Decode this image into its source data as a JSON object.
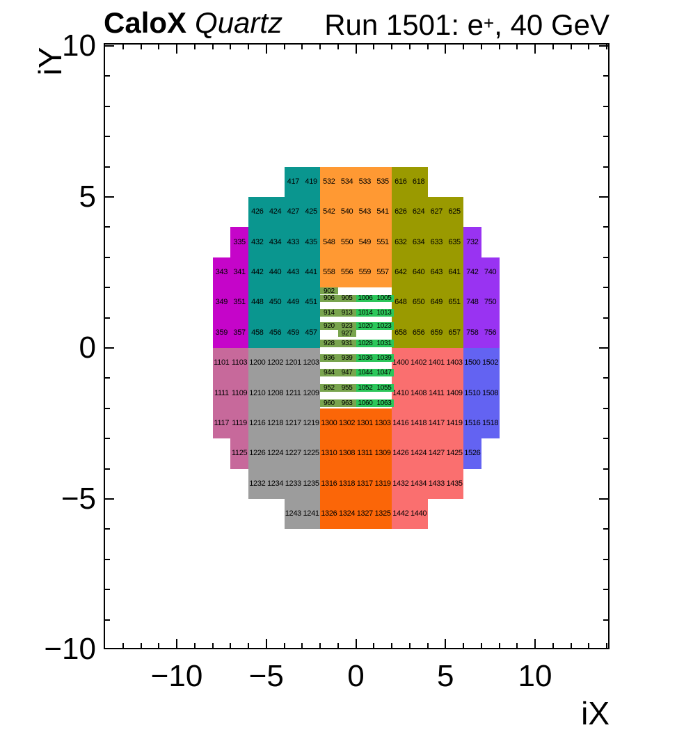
{
  "header": {
    "left_title_bold": "CaloX",
    "left_title_italic": "Quartz",
    "right_title_prefix": "Run 1501: e",
    "right_title_sup": "+",
    "right_title_suffix": ", 40 GeV"
  },
  "chart_data": {
    "type": "heatmap",
    "title": "CaloX Quartz — Run 1501: e+, 40 GeV",
    "xlabel": "iX",
    "ylabel": "iY",
    "xlim": [
      -14.1,
      14.15
    ],
    "ylim": [
      -10.05,
      10.1
    ],
    "grid": false,
    "x_major_ticks": [
      {
        "v": -10,
        "label": "−10"
      },
      {
        "v": -5,
        "label": "−5"
      },
      {
        "v": 0,
        "label": "0"
      },
      {
        "v": 5,
        "label": "5"
      },
      {
        "v": 10,
        "label": "10"
      }
    ],
    "y_major_ticks": [
      {
        "v": 10,
        "label": "10"
      },
      {
        "v": 5,
        "label": "5"
      },
      {
        "v": 0,
        "label": "0"
      },
      {
        "v": -5,
        "label": "−5"
      },
      {
        "v": -10,
        "label": "−10"
      }
    ],
    "x_minor_step": 1,
    "y_minor_step": 1,
    "frame_color": "#000000",
    "background_color": "#FFFFFF",
    "palette": {
      "teal": "#0A968F",
      "magenta": "#C505C9",
      "orange_light": "#FF9933",
      "olive": "#9A9A00",
      "violet": "#9933F2",
      "pink": "#C7699B",
      "gray": "#9C9C9C",
      "orange_dark": "#FB6608",
      "salmon": "#FA6F6F",
      "blue": "#6363F2",
      "green_dark": "#79A44E",
      "green_bright": "#2BC65A"
    },
    "blocks": [
      {
        "c": "magenta",
        "x0": -7,
        "x1": -6,
        "y0": 3,
        "y1": 4,
        "n": [
          335
        ]
      },
      {
        "c": "magenta",
        "x0": -8,
        "x1": -6,
        "y0": 2,
        "y1": 3,
        "n": [
          343,
          341
        ]
      },
      {
        "c": "magenta",
        "x0": -8,
        "x1": -6,
        "y0": 1,
        "y1": 2,
        "n": [
          349,
          351
        ]
      },
      {
        "c": "magenta",
        "x0": -8,
        "x1": -6,
        "y0": 0,
        "y1": 1,
        "n": [
          359,
          357
        ]
      },
      {
        "c": "teal",
        "x0": -4,
        "x1": -2,
        "y0": 5,
        "y1": 6,
        "n": [
          417,
          419
        ]
      },
      {
        "c": "teal",
        "x0": -6,
        "x1": -2,
        "y0": 4,
        "y1": 5,
        "n": [
          426,
          424,
          427,
          425
        ]
      },
      {
        "c": "teal",
        "x0": -6,
        "x1": -2,
        "y0": 3,
        "y1": 4,
        "n": [
          432,
          434,
          433,
          435
        ]
      },
      {
        "c": "teal",
        "x0": -6,
        "x1": -2,
        "y0": 2,
        "y1": 3,
        "n": [
          442,
          440,
          443,
          441
        ]
      },
      {
        "c": "teal",
        "x0": -6,
        "x1": -2,
        "y0": 1,
        "y1": 2,
        "n": [
          448,
          450,
          449,
          451
        ]
      },
      {
        "c": "teal",
        "x0": -6,
        "x1": -2,
        "y0": 0,
        "y1": 1,
        "n": [
          458,
          456,
          459,
          457
        ]
      },
      {
        "c": "orange_light",
        "x0": -2,
        "x1": 2,
        "y0": 5,
        "y1": 6,
        "n": [
          532,
          534,
          533,
          535
        ]
      },
      {
        "c": "orange_light",
        "x0": -2,
        "x1": 2,
        "y0": 4,
        "y1": 5,
        "n": [
          542,
          540,
          543,
          541
        ]
      },
      {
        "c": "orange_light",
        "x0": -2,
        "x1": 2,
        "y0": 3,
        "y1": 4,
        "n": [
          548,
          550,
          549,
          551
        ]
      },
      {
        "c": "orange_light",
        "x0": -2,
        "x1": 2,
        "y0": 2,
        "y1": 3,
        "n": [
          558,
          556,
          559,
          557
        ]
      },
      {
        "c": "olive",
        "x0": 2,
        "x1": 4,
        "y0": 5,
        "y1": 6,
        "n": [
          616,
          618
        ]
      },
      {
        "c": "olive",
        "x0": 2,
        "x1": 6,
        "y0": 4,
        "y1": 5,
        "n": [
          626,
          624,
          627,
          625
        ]
      },
      {
        "c": "olive",
        "x0": 2,
        "x1": 6,
        "y0": 3,
        "y1": 4,
        "n": [
          632,
          634,
          633,
          635
        ]
      },
      {
        "c": "olive",
        "x0": 2,
        "x1": 6,
        "y0": 2,
        "y1": 3,
        "n": [
          642,
          640,
          643,
          641
        ]
      },
      {
        "c": "olive",
        "x0": 2,
        "x1": 6,
        "y0": 1,
        "y1": 2,
        "n": [
          648,
          650,
          649,
          651
        ]
      },
      {
        "c": "olive",
        "x0": 2,
        "x1": 6,
        "y0": 0,
        "y1": 1,
        "n": [
          658,
          656,
          659,
          657
        ]
      },
      {
        "c": "violet",
        "x0": 6,
        "x1": 7,
        "y0": 3,
        "y1": 4,
        "n": [
          732
        ]
      },
      {
        "c": "violet",
        "x0": 6,
        "x1": 8,
        "y0": 2,
        "y1": 3,
        "n": [
          742,
          740
        ]
      },
      {
        "c": "violet",
        "x0": 6,
        "x1": 8,
        "y0": 1,
        "y1": 2,
        "n": [
          748,
          750
        ]
      },
      {
        "c": "violet",
        "x0": 6,
        "x1": 8,
        "y0": 0,
        "y1": 1,
        "n": [
          758,
          756
        ]
      },
      {
        "c": "pink",
        "x0": -8,
        "x1": -6,
        "y0": -1,
        "y1": 0,
        "n": [
          1101,
          1103
        ]
      },
      {
        "c": "pink",
        "x0": -8,
        "x1": -6,
        "y0": -2,
        "y1": -1,
        "n": [
          1111,
          1109
        ]
      },
      {
        "c": "pink",
        "x0": -8,
        "x1": -6,
        "y0": -3,
        "y1": -2,
        "n": [
          1117,
          1119
        ]
      },
      {
        "c": "pink",
        "x0": -7,
        "x1": -6,
        "y0": -4,
        "y1": -3,
        "n": [
          1125
        ]
      },
      {
        "c": "gray",
        "x0": -6,
        "x1": -2,
        "y0": -1,
        "y1": 0,
        "n": [
          1200,
          1202,
          1201,
          1203
        ]
      },
      {
        "c": "gray",
        "x0": -6,
        "x1": -2,
        "y0": -2,
        "y1": -1,
        "n": [
          1210,
          1208,
          1211,
          1209
        ]
      },
      {
        "c": "gray",
        "x0": -6,
        "x1": -2,
        "y0": -3,
        "y1": -2,
        "n": [
          1216,
          1218,
          1217,
          1219
        ]
      },
      {
        "c": "gray",
        "x0": -6,
        "x1": -2,
        "y0": -4,
        "y1": -3,
        "n": [
          1226,
          1224,
          1227,
          1225
        ]
      },
      {
        "c": "gray",
        "x0": -6,
        "x1": -2,
        "y0": -5,
        "y1": -4,
        "n": [
          1232,
          1234,
          1233,
          1235
        ]
      },
      {
        "c": "gray",
        "x0": -4,
        "x1": -2,
        "y0": -6,
        "y1": -5,
        "n": [
          1243,
          1241
        ]
      },
      {
        "c": "orange_dark",
        "x0": -2,
        "x1": 2,
        "y0": -3,
        "y1": -2,
        "n": [
          1300,
          1302,
          1301,
          1303
        ]
      },
      {
        "c": "orange_dark",
        "x0": -2,
        "x1": 2,
        "y0": -4,
        "y1": -3,
        "n": [
          1310,
          1308,
          1311,
          1309
        ]
      },
      {
        "c": "orange_dark",
        "x0": -2,
        "x1": 2,
        "y0": -5,
        "y1": -4,
        "n": [
          1316,
          1318,
          1317,
          1319
        ]
      },
      {
        "c": "orange_dark",
        "x0": -2,
        "x1": 2,
        "y0": -6,
        "y1": -5,
        "n": [
          1326,
          1324,
          1327,
          1325
        ]
      },
      {
        "c": "salmon",
        "x0": 2,
        "x1": 6,
        "y0": -1,
        "y1": 0,
        "n": [
          1400,
          1402,
          1401,
          1403
        ]
      },
      {
        "c": "salmon",
        "x0": 2,
        "x1": 6,
        "y0": -2,
        "y1": -1,
        "n": [
          1410,
          1408,
          1411,
          1409
        ]
      },
      {
        "c": "salmon",
        "x0": 2,
        "x1": 6,
        "y0": -3,
        "y1": -2,
        "n": [
          1416,
          1418,
          1417,
          1419
        ]
      },
      {
        "c": "salmon",
        "x0": 2,
        "x1": 6,
        "y0": -4,
        "y1": -3,
        "n": [
          1426,
          1424,
          1427,
          1425
        ]
      },
      {
        "c": "salmon",
        "x0": 2,
        "x1": 6,
        "y0": -5,
        "y1": -4,
        "n": [
          1432,
          1434,
          1433,
          1435
        ]
      },
      {
        "c": "salmon",
        "x0": 2,
        "x1": 4,
        "y0": -6,
        "y1": -5,
        "n": [
          1442,
          1440
        ]
      },
      {
        "c": "blue",
        "x0": 6,
        "x1": 8,
        "y0": -1,
        "y1": 0,
        "n": [
          1500,
          1502
        ]
      },
      {
        "c": "blue",
        "x0": 6,
        "x1": 8,
        "y0": -2,
        "y1": -1,
        "n": [
          1510,
          1508
        ]
      },
      {
        "c": "blue",
        "x0": 6,
        "x1": 8,
        "y0": -3,
        "y1": -2,
        "n": [
          1516,
          1518
        ]
      },
      {
        "c": "blue",
        "x0": 6,
        "x1": 7,
        "y0": -4,
        "y1": -3,
        "n": [
          1526
        ]
      },
      {
        "c": "green_dark",
        "x0": -2,
        "x1": -1,
        "y0": 1.77,
        "y1": 2.0,
        "n": [
          902
        ],
        "s": true
      },
      {
        "c": "green_dark",
        "x0": -2,
        "x1": 0,
        "y0": 1.52,
        "y1": 1.76,
        "n": [
          906,
          905
        ],
        "s": true
      },
      {
        "c": "green_bright",
        "x0": 0,
        "x1": 2.1,
        "y0": 1.52,
        "y1": 1.76,
        "n": [
          1006,
          1005
        ],
        "s": true
      },
      {
        "c": "green_dark",
        "x0": -2,
        "x1": 0,
        "y0": 1.04,
        "y1": 1.29,
        "n": [
          914,
          913
        ],
        "s": true
      },
      {
        "c": "green_bright",
        "x0": 0,
        "x1": 2.1,
        "y0": 1.04,
        "y1": 1.29,
        "n": [
          1014,
          1013
        ],
        "s": true
      },
      {
        "c": "green_dark",
        "x0": -2,
        "x1": 0,
        "y0": 0.61,
        "y1": 0.85,
        "n": [
          920,
          923
        ],
        "s": true
      },
      {
        "c": "green_bright",
        "x0": 0,
        "x1": 2.1,
        "y0": 0.61,
        "y1": 0.85,
        "n": [
          1020,
          1023
        ],
        "s": true
      },
      {
        "c": "green_dark",
        "x0": -1,
        "x1": 0,
        "y0": 0.36,
        "y1": 0.59,
        "n": [
          927
        ],
        "s": true
      },
      {
        "c": "green_dark",
        "x0": -2,
        "x1": 0,
        "y0": 0.02,
        "y1": 0.27,
        "n": [
          928,
          931
        ],
        "s": true
      },
      {
        "c": "green_bright",
        "x0": 0,
        "x1": 2.1,
        "y0": 0.02,
        "y1": 0.27,
        "n": [
          1028,
          1031
        ],
        "s": true
      },
      {
        "c": "green_dark",
        "x0": -2,
        "x1": 0,
        "y0": -0.46,
        "y1": -0.21,
        "n": [
          936,
          939
        ],
        "s": true
      },
      {
        "c": "green_bright",
        "x0": 0,
        "x1": 2.1,
        "y0": -0.46,
        "y1": -0.21,
        "n": [
          1036,
          1039
        ],
        "s": true
      },
      {
        "c": "green_dark",
        "x0": -2,
        "x1": 0,
        "y0": -0.94,
        "y1": -0.69,
        "n": [
          944,
          947
        ],
        "s": true
      },
      {
        "c": "green_bright",
        "x0": 0,
        "x1": 2.1,
        "y0": -0.94,
        "y1": -0.69,
        "n": [
          1044,
          1047
        ],
        "s": true
      },
      {
        "c": "green_dark",
        "x0": -2,
        "x1": 0,
        "y0": -1.45,
        "y1": -1.19,
        "n": [
          952,
          955
        ],
        "s": true
      },
      {
        "c": "green_bright",
        "x0": 0,
        "x1": 2.1,
        "y0": -1.45,
        "y1": -1.19,
        "n": [
          1052,
          1055
        ],
        "s": true
      },
      {
        "c": "green_dark",
        "x0": -2,
        "x1": 0,
        "y0": -1.96,
        "y1": -1.7,
        "n": [
          960,
          963
        ],
        "s": true
      },
      {
        "c": "green_bright",
        "x0": 0,
        "x1": 2.1,
        "y0": -1.96,
        "y1": -1.7,
        "n": [
          1060,
          1063
        ],
        "s": true
      }
    ]
  }
}
